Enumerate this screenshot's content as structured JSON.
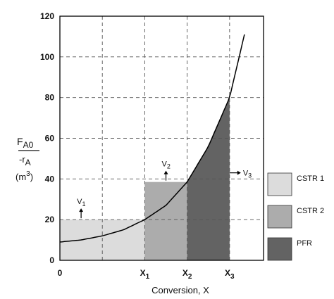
{
  "chart_data": {
    "type": "area",
    "xlabel": "Conversion, X",
    "ylabel": {
      "numerator": "F",
      "numerator_sub": "A0",
      "denominator": "-r",
      "denominator_sub": "A",
      "units_open": "(m",
      "units_sup": "3",
      "units_close": ")"
    },
    "ylim": [
      0,
      120
    ],
    "yticks": [
      "0",
      "20",
      "40",
      "60",
      "80",
      "100",
      "120"
    ],
    "xticks": [
      {
        "label": "0",
        "sub": "",
        "x": 0
      },
      {
        "label": "X",
        "sub": "1",
        "x": 0.4
      },
      {
        "label": "X",
        "sub": "2",
        "x": 0.6
      },
      {
        "label": "X",
        "sub": "3",
        "x": 0.8
      }
    ],
    "xlim": [
      0,
      0.96
    ],
    "grid": true,
    "curve": [
      {
        "x": 0,
        "y": 9
      },
      {
        "x": 0.1,
        "y": 10
      },
      {
        "x": 0.2,
        "y": 12
      },
      {
        "x": 0.3,
        "y": 15
      },
      {
        "x": 0.4,
        "y": 20
      },
      {
        "x": 0.5,
        "y": 27
      },
      {
        "x": 0.6,
        "y": 38.5
      },
      {
        "x": 0.7,
        "y": 56
      },
      {
        "x": 0.8,
        "y": 80
      },
      {
        "x": 0.87,
        "y": 111
      }
    ],
    "regions": [
      {
        "name": "CSTR 1",
        "type": "rect",
        "x0": 0,
        "x1": 0.4,
        "y": 20,
        "color": "#dcdcdc"
      },
      {
        "name": "CSTR 2",
        "type": "rect",
        "x0": 0.4,
        "x1": 0.6,
        "y": 38.5,
        "color": "#acacac"
      },
      {
        "name": "PFR",
        "type": "under-curve",
        "x0": 0.6,
        "x1": 0.8,
        "color": "#636363"
      }
    ],
    "annotations": [
      {
        "label": "V",
        "sub": "1",
        "x": 0.1,
        "y": 20,
        "dir": "up"
      },
      {
        "label": "V",
        "sub": "2",
        "x": 0.5,
        "y": 38.5,
        "dir": "up"
      },
      {
        "label": "V",
        "sub": "3",
        "x": 0.8,
        "y": 43,
        "dir": "right"
      }
    ],
    "legend": {
      "placement": "right",
      "items": [
        {
          "label": "CSTR 1",
          "color": "#dcdcdc"
        },
        {
          "label": "CSTR 2",
          "color": "#acacac"
        },
        {
          "label": "PFR",
          "color": "#636363"
        }
      ]
    }
  }
}
